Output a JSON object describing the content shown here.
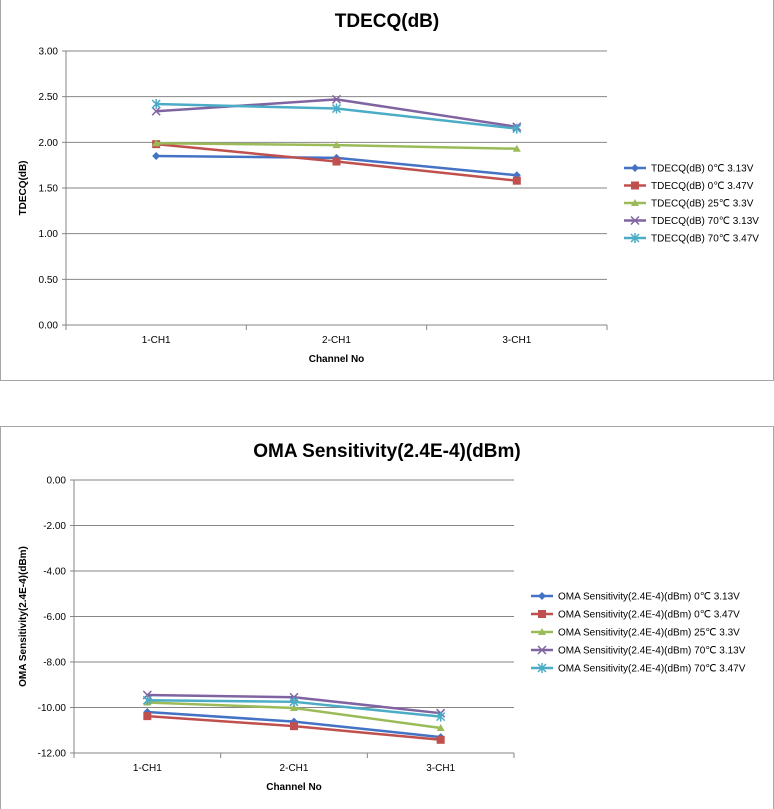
{
  "chart_data": [
    {
      "type": "line",
      "title": "TDECQ(dB)",
      "xlabel": "Channel No",
      "ylabel": "TDECQ(dB)",
      "categories": [
        "1-CH1",
        "2-CH1",
        "3-CH1"
      ],
      "ylim": [
        0,
        3
      ],
      "yticks": [
        "0.00",
        "0.50",
        "1.00",
        "1.50",
        "2.00",
        "2.50",
        "3.00"
      ],
      "yticks_values": [
        0,
        0.5,
        1,
        1.5,
        2,
        2.5,
        3
      ],
      "grid": true,
      "legend_position": "right",
      "series": [
        {
          "name": "TDECQ(dB) 0℃ 3.13V",
          "values": [
            1.85,
            1.83,
            1.64
          ],
          "color": "#4472c4",
          "marker": "diamond"
        },
        {
          "name": "TDECQ(dB) 0℃ 3.47V",
          "values": [
            1.98,
            1.79,
            1.58
          ],
          "color": "#c0504d",
          "marker": "square"
        },
        {
          "name": "TDECQ(dB) 25℃ 3.3V",
          "values": [
            1.99,
            1.97,
            1.93
          ],
          "color": "#9bbb59",
          "marker": "triangle"
        },
        {
          "name": "TDECQ(dB) 70℃ 3.13V",
          "values": [
            2.34,
            2.47,
            2.17
          ],
          "color": "#8064a2",
          "marker": "x"
        },
        {
          "name": "TDECQ(dB) 70℃ 3.47V",
          "values": [
            2.42,
            2.37,
            2.15
          ],
          "color": "#4bacc6",
          "marker": "star"
        }
      ]
    },
    {
      "type": "line",
      "title": "OMA Sensitivity(2.4E-4)(dBm)",
      "xlabel": "Channel No",
      "ylabel": "OMA Sensitivity(2.4E-4)(dBm)",
      "categories": [
        "1-CH1",
        "2-CH1",
        "3-CH1"
      ],
      "ylim": [
        -12,
        0
      ],
      "yticks": [
        "-12.00",
        "-10.00",
        "-8.00",
        "-6.00",
        "-4.00",
        "-2.00",
        "0.00"
      ],
      "yticks_values": [
        -12,
        -10,
        -8,
        -6,
        -4,
        -2,
        0
      ],
      "grid": true,
      "legend_position": "right",
      "series": [
        {
          "name": "OMA Sensitivity(2.4E-4)(dBm) 0℃ 3.13V",
          "values": [
            -10.2,
            -10.62,
            -11.3
          ],
          "color": "#4472c4",
          "marker": "diamond"
        },
        {
          "name": "OMA Sensitivity(2.4E-4)(dBm) 0℃ 3.47V",
          "values": [
            -10.38,
            -10.82,
            -11.42
          ],
          "color": "#c0504d",
          "marker": "square"
        },
        {
          "name": "OMA Sensitivity(2.4E-4)(dBm) 25℃ 3.3V",
          "values": [
            -9.78,
            -10.02,
            -10.9
          ],
          "color": "#9bbb59",
          "marker": "triangle"
        },
        {
          "name": "OMA Sensitivity(2.4E-4)(dBm) 70℃ 3.13V",
          "values": [
            -9.45,
            -9.55,
            -10.25
          ],
          "color": "#8064a2",
          "marker": "x"
        },
        {
          "name": "OMA Sensitivity(2.4E-4)(dBm) 70℃ 3.47V",
          "values": [
            -9.68,
            -9.75,
            -10.4
          ],
          "color": "#4bacc6",
          "marker": "star"
        }
      ]
    }
  ]
}
